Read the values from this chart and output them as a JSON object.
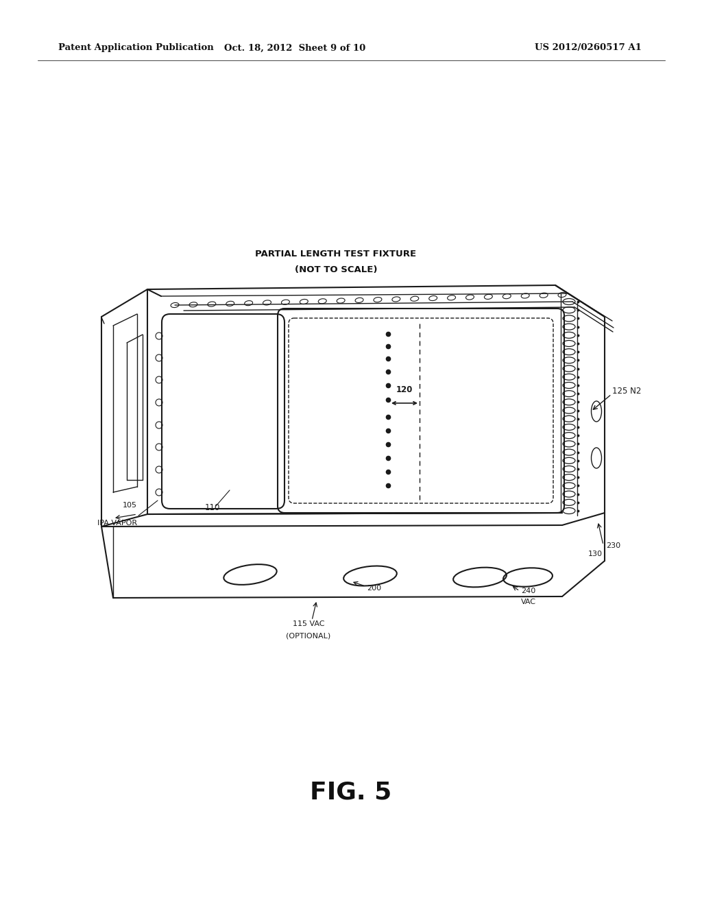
{
  "bg_color": "#ffffff",
  "line_color": "#1a1a1a",
  "header_left": "Patent Application Publication",
  "header_mid": "Oct. 18, 2012  Sheet 9 of 10",
  "header_right": "US 2012/0260517 A1",
  "fig_label": "FIG. 5",
  "title_line1": "PARTIAL LENGTH TEST FIXTURE",
  "title_line2": "(NOT TO SCALE)",
  "label_105": "105",
  "label_ipa": "IPA VAPOR",
  "label_110": "110",
  "label_120": "120",
  "label_125": "125 N2",
  "label_130": "130",
  "label_200": "200",
  "label_115": "115 VAC",
  "label_115b": "(OPTIONAL)",
  "label_230": "230",
  "label_240": "240",
  "label_240b": "VAC"
}
